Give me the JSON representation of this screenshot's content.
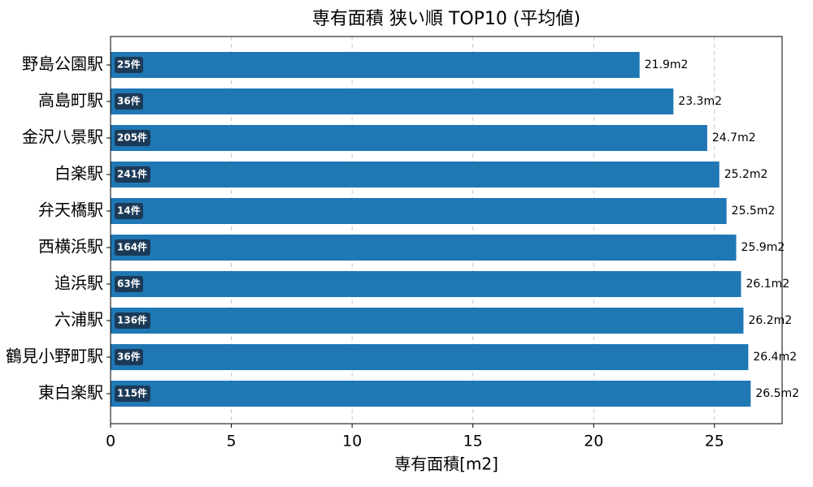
{
  "chart_data": {
    "type": "barh",
    "title": "専有面積 狭い順 TOP10 (平均値)",
    "xlabel": "専有面積[m2]",
    "categories": [
      "野島公園駅",
      "高島町駅",
      "金沢八景駅",
      "白楽駅",
      "弁天橋駅",
      "西横浜駅",
      "追浜駅",
      "六浦駅",
      "鶴見小野町駅",
      "東白楽駅"
    ],
    "values": [
      21.9,
      23.3,
      24.7,
      25.2,
      25.5,
      25.9,
      26.1,
      26.2,
      26.4,
      26.5
    ],
    "value_labels": [
      "21.9m2",
      "23.3m2",
      "24.7m2",
      "25.2m2",
      "25.5m2",
      "25.9m2",
      "26.1m2",
      "26.2m2",
      "26.4m2",
      "26.5m2"
    ],
    "count_labels": [
      "25件",
      "36件",
      "205件",
      "241件",
      "14件",
      "164件",
      "63件",
      "136件",
      "36件",
      "115件"
    ],
    "color": "#1f77b4",
    "xlim": [
      0,
      27.8
    ],
    "xticks": [
      0,
      5,
      10,
      15,
      20,
      25
    ],
    "grid": true
  }
}
